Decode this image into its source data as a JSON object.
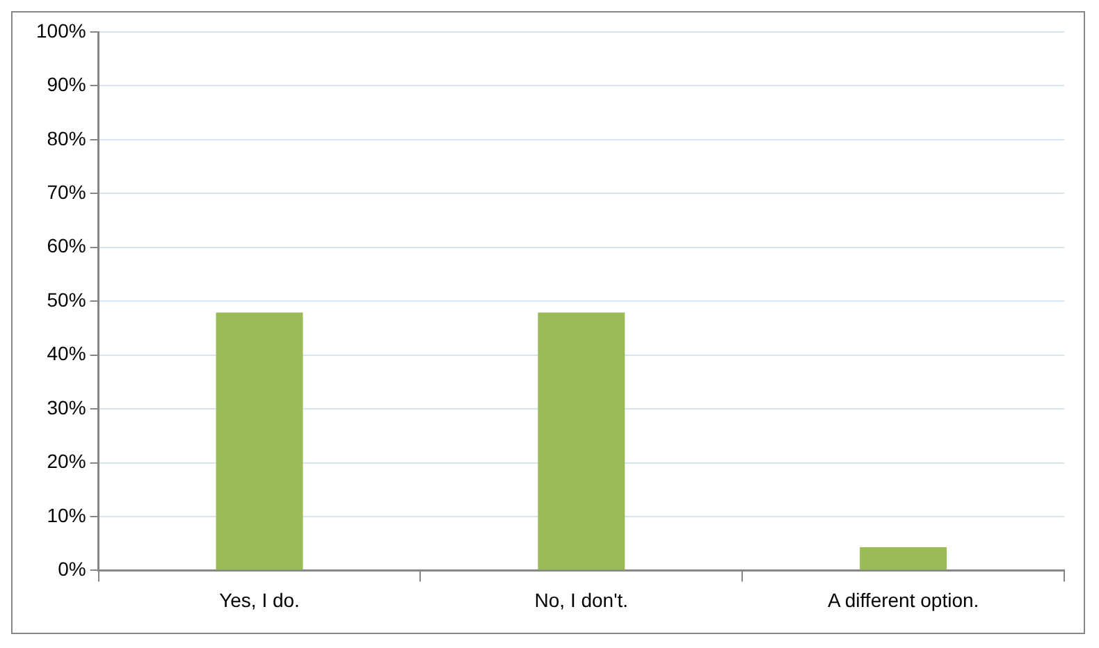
{
  "chart_data": {
    "type": "bar",
    "categories": [
      "Yes, I do.",
      "No, I don't.",
      "A different option."
    ],
    "values": [
      47.9,
      47.9,
      4.3
    ],
    "color": "#9bbb59",
    "ylim": [
      0,
      100
    ],
    "yticks": [
      {
        "value": 0,
        "label": "0%"
      },
      {
        "value": 10,
        "label": "10%"
      },
      {
        "value": 20,
        "label": "20%"
      },
      {
        "value": 30,
        "label": "30%"
      },
      {
        "value": 40,
        "label": "40%"
      },
      {
        "value": 50,
        "label": "50%"
      },
      {
        "value": 60,
        "label": "60%"
      },
      {
        "value": 70,
        "label": "70%"
      },
      {
        "value": 80,
        "label": "80%"
      },
      {
        "value": 90,
        "label": "90%"
      },
      {
        "value": 100,
        "label": "100%"
      }
    ],
    "grid": "y",
    "legend": false
  }
}
